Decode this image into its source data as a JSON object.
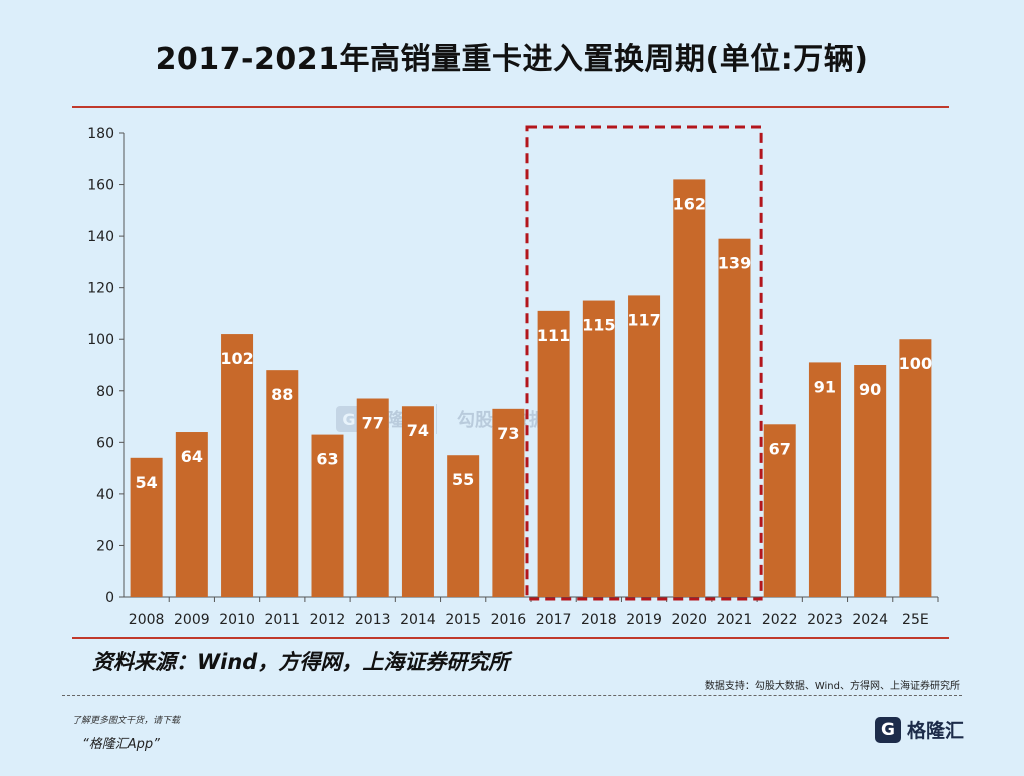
{
  "title": "2017-2021年高销量重卡进入置换周期(单位:万辆)",
  "source": "资料来源：Wind，方得网，上海证券研究所",
  "data_support": "数据支持：勾股大数据、Wind、方得网、上海证券研究所",
  "promo_line1": "了解更多图文干货，请下载",
  "promo_line2": "“格隆汇App”",
  "logo_text": "格隆汇",
  "watermark": {
    "brand": "格隆汇",
    "product": "勾股大数据"
  },
  "colors": {
    "bar": "#c8692a",
    "highlight_box": "#b3161c",
    "rule": "#c0392b",
    "background": "#dceefa"
  },
  "chart_data": {
    "type": "bar",
    "categories": [
      "2008",
      "2009",
      "2010",
      "2011",
      "2012",
      "2013",
      "2014",
      "2015",
      "2016",
      "2017",
      "2018",
      "2019",
      "2020",
      "2021",
      "2022",
      "2023",
      "2024",
      "25E"
    ],
    "values": [
      54,
      64,
      102,
      88,
      63,
      77,
      74,
      55,
      73,
      111,
      115,
      117,
      162,
      139,
      67,
      91,
      90,
      100
    ],
    "ylim": [
      0,
      180
    ],
    "yticks": [
      0,
      20,
      40,
      60,
      80,
      100,
      120,
      140,
      160,
      180
    ],
    "grid": false,
    "highlight_range": [
      "2017",
      "2021"
    ],
    "data_labels": true
  }
}
